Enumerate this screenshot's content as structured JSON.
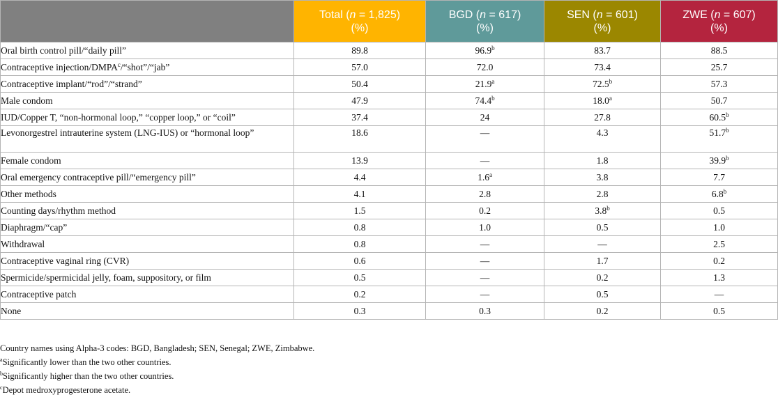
{
  "header": {
    "blank": "",
    "total": {
      "name": "Total (",
      "n": "n",
      "count": " = 1,825)",
      "unit": "(%)"
    },
    "bgd": {
      "name": "BGD (",
      "n": "n",
      "count": " = 617)",
      "unit": "(%)"
    },
    "sen": {
      "name": "SEN (",
      "n": "n",
      "count": " = 601)",
      "unit": "(%)"
    },
    "zwe": {
      "name": "ZWE (",
      "n": "n",
      "count": " = 607)",
      "unit": "(%)"
    }
  },
  "rows": [
    {
      "label": "Oral birth control pill/“daily pill”",
      "total": "89.8",
      "bgd": "96.9",
      "bgd_sup": "b",
      "sen": "83.7",
      "zwe": "88.5"
    },
    {
      "label": "Contraceptive injection/DMPA",
      "label_sup": "c",
      "label_rest": "/“shot”/“jab”",
      "total": "57.0",
      "bgd": "72.0",
      "sen": "73.4",
      "zwe": "25.7"
    },
    {
      "label": "Contraceptive implant/“rod”/“strand”",
      "total": "50.4",
      "bgd": "21.9",
      "bgd_sup": "a",
      "sen": "72.5",
      "sen_sup": "b",
      "zwe": "57.3"
    },
    {
      "label": "Male condom",
      "total": "47.9",
      "bgd": "74.4",
      "bgd_sup": "b",
      "sen": "18.0",
      "sen_sup": "a",
      "zwe": "50.7"
    },
    {
      "label": "IUD/Copper T, “non-hormonal loop,” “copper loop,” or “coil”",
      "total": "37.4",
      "bgd": "24",
      "sen": "27.8",
      "zwe": "60.5",
      "zwe_sup": "b"
    },
    {
      "label": "Levonorgestrel intrauterine system (LNG-IUS) or “hormonal loop”",
      "total": "18.6",
      "bgd": "—",
      "sen": "4.3",
      "zwe": "51.7",
      "zwe_sup": "b"
    },
    {
      "label": "Female condom",
      "total": "13.9",
      "bgd": "—",
      "sen": "1.8",
      "zwe": "39.9",
      "zwe_sup": "b"
    },
    {
      "label": "Oral emergency contraceptive pill/“emergency pill”",
      "total": "4.4",
      "bgd": "1.6",
      "bgd_sup": "a",
      "sen": "3.8",
      "zwe": "7.7"
    },
    {
      "label": "Other methods",
      "total": "4.1",
      "bgd": "2.8",
      "sen": "2.8",
      "zwe": "6.8",
      "zwe_sup": "b"
    },
    {
      "label": "Counting days/rhythm method",
      "total": "1.5",
      "bgd": "0.2",
      "sen": "3.8",
      "sen_sup": "b",
      "zwe": "0.5"
    },
    {
      "label": "Diaphragm/“cap”",
      "total": "0.8",
      "bgd": "1.0",
      "sen": "0.5",
      "zwe": "1.0"
    },
    {
      "label": "Withdrawal",
      "total": "0.8",
      "bgd": "—",
      "sen": "—",
      "zwe": "2.5"
    },
    {
      "label": "Contraceptive vaginal ring (CVR)",
      "total": "0.6",
      "bgd": "—",
      "sen": "1.7",
      "zwe": "0.2"
    },
    {
      "label": "Spermicide/spermicidal jelly, foam, suppository, or film",
      "total": "0.5",
      "bgd": "—",
      "sen": "0.2",
      "zwe": "1.3"
    },
    {
      "label": "Contraceptive patch",
      "total": "0.2",
      "bgd": "—",
      "sen": "0.5",
      "zwe": "—"
    },
    {
      "label": "None",
      "total": "0.3",
      "bgd": "0.3",
      "sen": "0.2",
      "zwe": "0.5"
    }
  ],
  "notes": {
    "codes": "Country names using Alpha-3 codes: BGD, Bangladesh; SEN, Senegal; ZWE, Zimbabwe.",
    "a_mark": "a",
    "a_text": "Significantly lower than the two other countries.",
    "b_mark": "b",
    "b_text": "Significantly higher than the two other countries.",
    "c_mark": "c",
    "c_text": "Depot medroxyprogesterone acetate."
  },
  "colors": {
    "blank_header": "#808080",
    "total_header": "#ffb400",
    "bgd_header": "#5f9a9a",
    "sen_header": "#9b8700",
    "zwe_header": "#b4243e"
  }
}
